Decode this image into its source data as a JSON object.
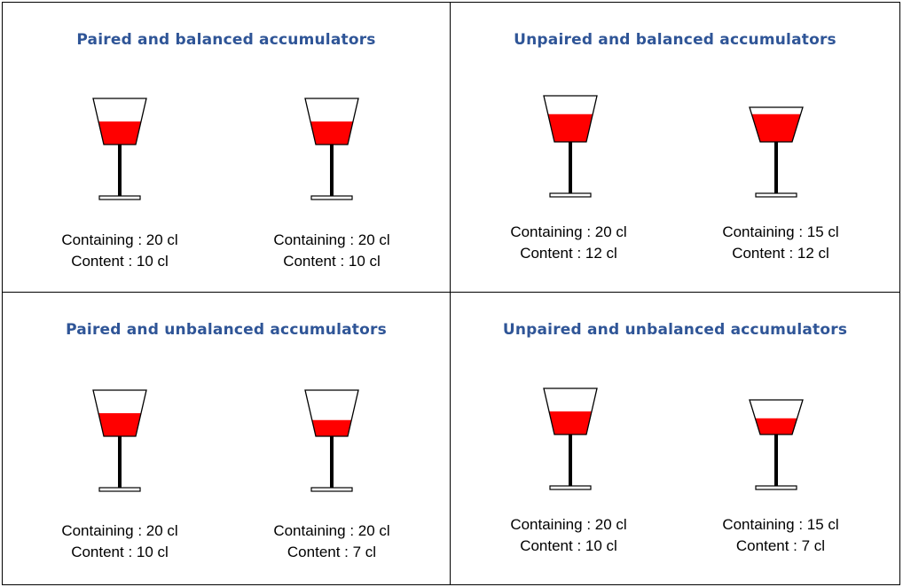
{
  "colors": {
    "liquid": "#ff0000",
    "title": "#2f5597",
    "outline": "#000000"
  },
  "panels": [
    {
      "title": "Paired and balanced accumulators",
      "glasses": [
        {
          "containing": "Containing : 20 cl",
          "content": "Content : 10 cl",
          "capacity": 20,
          "fill": 10
        },
        {
          "containing": "Containing : 20 cl",
          "content": "Content : 10 cl",
          "capacity": 20,
          "fill": 10
        }
      ]
    },
    {
      "title": "Unpaired and balanced accumulators",
      "glasses": [
        {
          "containing": "Containing : 20 cl",
          "content": "Content : 12 cl",
          "capacity": 20,
          "fill": 12
        },
        {
          "containing": "Containing : 15 cl",
          "content": "Content : 12 cl",
          "capacity": 15,
          "fill": 12
        }
      ]
    },
    {
      "title": "Paired and unbalanced accumulators",
      "glasses": [
        {
          "containing": "Containing : 20 cl",
          "content": "Content : 10 cl",
          "capacity": 20,
          "fill": 10
        },
        {
          "containing": "Containing : 20 cl",
          "content": "Content : 7 cl",
          "capacity": 20,
          "fill": 7
        }
      ]
    },
    {
      "title": "Unpaired and unbalanced accumulators",
      "glasses": [
        {
          "containing": "Containing : 20 cl",
          "content": "Content : 10 cl",
          "capacity": 20,
          "fill": 10
        },
        {
          "containing": "Containing : 15 cl",
          "content": "Content : 7 cl",
          "capacity": 15,
          "fill": 7
        }
      ]
    }
  ]
}
